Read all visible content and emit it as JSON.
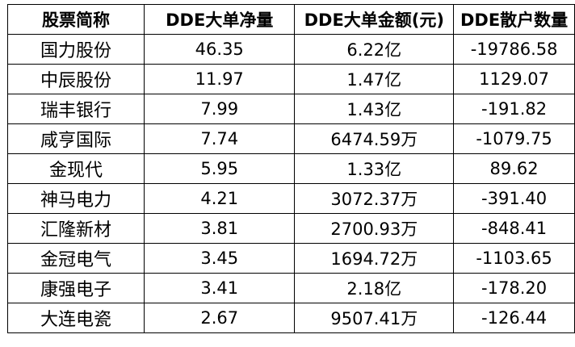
{
  "table": {
    "headers": [
      "股票简称",
      "DDE大单净量",
      "DDE大单金额(元)",
      "DDE散户数量"
    ],
    "rows": [
      [
        "国力股份",
        "46.35",
        "6.22亿",
        "-19786.58"
      ],
      [
        "中辰股份",
        "11.97",
        "1.47亿",
        "1129.07"
      ],
      [
        "瑞丰银行",
        "7.99",
        "1.43亿",
        "-191.82"
      ],
      [
        "咸亨国际",
        "7.74",
        "6474.59万",
        "-1079.75"
      ],
      [
        "金现代",
        "5.95",
        "1.33亿",
        "89.62"
      ],
      [
        "神马电力",
        "4.21",
        "3072.37万",
        "-391.40"
      ],
      [
        "汇隆新材",
        "3.81",
        "2700.93万",
        "-848.41"
      ],
      [
        "金冠电气",
        "3.45",
        "1694.72万",
        "-1103.65"
      ],
      [
        "康强电子",
        "3.41",
        "2.18亿",
        "-178.20"
      ],
      [
        "大连电瓷",
        "2.67",
        "9507.41万",
        "-126.44"
      ]
    ]
  }
}
